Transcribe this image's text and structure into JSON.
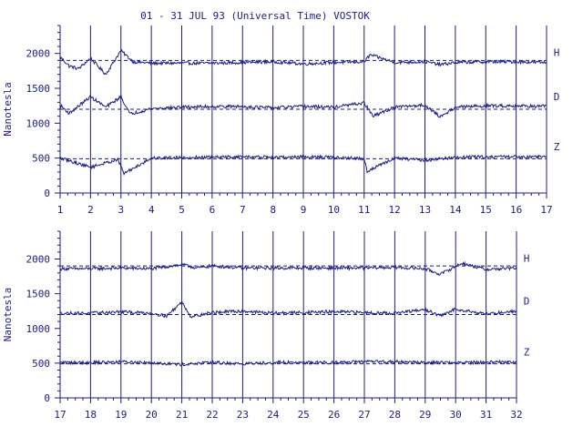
{
  "title": "01 - 31 JUL 93 (Universal Time) VOSTOK",
  "colors": {
    "ink": "#1c1c80",
    "background": "#ffffff"
  },
  "chart_data": [
    {
      "type": "line",
      "xlabel": "",
      "ylabel": "Nanotesla",
      "xlim": [
        1,
        17
      ],
      "ylim": [
        0,
        2400
      ],
      "x_ticks": [
        1,
        2,
        3,
        4,
        5,
        6,
        7,
        8,
        9,
        10,
        11,
        12,
        13,
        14,
        15,
        16,
        17
      ],
      "y_ticks": [
        0,
        500,
        1000,
        1500,
        2000
      ],
      "grid": "vertical lines at each day",
      "series": [
        {
          "name": "H",
          "baseline": 1900,
          "x": [
            1,
            1.3,
            1.6,
            2,
            2.5,
            3,
            3.4,
            4,
            5,
            6,
            7,
            8,
            9,
            10,
            11,
            11.2,
            12,
            13,
            13.5,
            14,
            15,
            16,
            17
          ],
          "values": [
            1950,
            1820,
            1780,
            1930,
            1700,
            2040,
            1880,
            1860,
            1860,
            1860,
            1870,
            1880,
            1850,
            1870,
            1880,
            1980,
            1870,
            1880,
            1840,
            1870,
            1880,
            1880,
            1870
          ]
        },
        {
          "name": "D",
          "baseline": 1200,
          "x": [
            1,
            1.3,
            2,
            2.5,
            3,
            3.3,
            4,
            5,
            6,
            7,
            8,
            9,
            10,
            11,
            11.3,
            12,
            13,
            13.5,
            14,
            15,
            16,
            17
          ],
          "values": [
            1260,
            1140,
            1380,
            1230,
            1380,
            1130,
            1210,
            1230,
            1240,
            1240,
            1220,
            1240,
            1230,
            1290,
            1100,
            1230,
            1260,
            1090,
            1230,
            1250,
            1250,
            1240
          ]
        },
        {
          "name": "Z",
          "baseline": 490,
          "x": [
            1,
            2,
            2.9,
            3.1,
            4,
            5,
            6,
            7,
            8,
            9,
            10,
            11,
            11.1,
            12,
            13,
            14,
            15,
            16,
            17
          ],
          "values": [
            500,
            370,
            480,
            280,
            500,
            510,
            510,
            520,
            510,
            520,
            510,
            490,
            310,
            500,
            470,
            510,
            520,
            520,
            520
          ]
        }
      ]
    },
    {
      "type": "line",
      "xlabel": "",
      "ylabel": "Nanotesla",
      "xlim": [
        17,
        32
      ],
      "ylim": [
        0,
        2400
      ],
      "x_ticks": [
        17,
        18,
        19,
        20,
        21,
        22,
        23,
        24,
        25,
        26,
        27,
        28,
        29,
        30,
        31,
        32
      ],
      "y_ticks": [
        0,
        500,
        1000,
        1500,
        2000
      ],
      "grid": "vertical lines at each day",
      "series": [
        {
          "name": "H",
          "baseline": 1900,
          "x": [
            17,
            18,
            19,
            20,
            21,
            21.5,
            22,
            23,
            24,
            25,
            26,
            27,
            28,
            29,
            29.5,
            30.2,
            31,
            32
          ],
          "values": [
            1860,
            1860,
            1870,
            1860,
            1920,
            1870,
            1900,
            1870,
            1870,
            1870,
            1870,
            1870,
            1880,
            1860,
            1780,
            1940,
            1850,
            1870
          ]
        },
        {
          "name": "D",
          "baseline": 1200,
          "x": [
            17,
            18,
            19,
            20,
            20.5,
            21,
            21.3,
            22,
            23,
            24,
            25,
            26,
            27,
            28,
            29,
            29.5,
            30,
            31,
            32
          ],
          "values": [
            1220,
            1220,
            1240,
            1220,
            1180,
            1380,
            1170,
            1230,
            1250,
            1220,
            1230,
            1240,
            1230,
            1220,
            1270,
            1180,
            1280,
            1210,
            1250
          ]
        },
        {
          "name": "Z",
          "baseline": 490,
          "x": [
            17,
            18,
            19,
            20,
            21,
            22,
            23,
            24,
            25,
            26,
            27,
            28,
            29,
            30,
            31,
            32
          ],
          "values": [
            510,
            510,
            520,
            510,
            480,
            510,
            490,
            510,
            510,
            510,
            520,
            520,
            510,
            510,
            510,
            520
          ]
        }
      ]
    }
  ]
}
